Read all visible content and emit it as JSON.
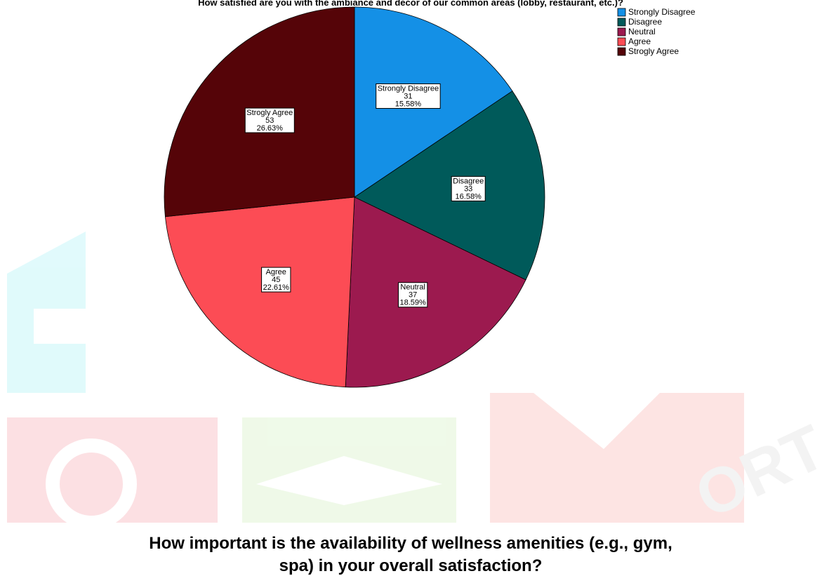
{
  "chart_data": {
    "type": "pie",
    "title": "How satisfied are you with the ambiance and decor of our common areas (lobby, restaurant, etc.)?",
    "categories": [
      "Strongly Disagree",
      "Disagree",
      "Neutral",
      "Agree",
      "Strogly Agree"
    ],
    "values": [
      31,
      33,
      37,
      45,
      53
    ],
    "percentages": [
      15.58,
      16.58,
      18.59,
      22.61,
      26.63
    ],
    "percent_labels": [
      "15.58%",
      "16.58%",
      "18.59%",
      "22.61%",
      "26.63%"
    ],
    "colors": [
      "#1490e6",
      "#005a5a",
      "#9c1a4f",
      "#fc4c55",
      "#550408"
    ],
    "legend": "upper right",
    "annotation_lines": [
      "How important is the availability of wellness amenities (e.g., gym,",
      "spa) in your overall satisfaction?"
    ]
  }
}
